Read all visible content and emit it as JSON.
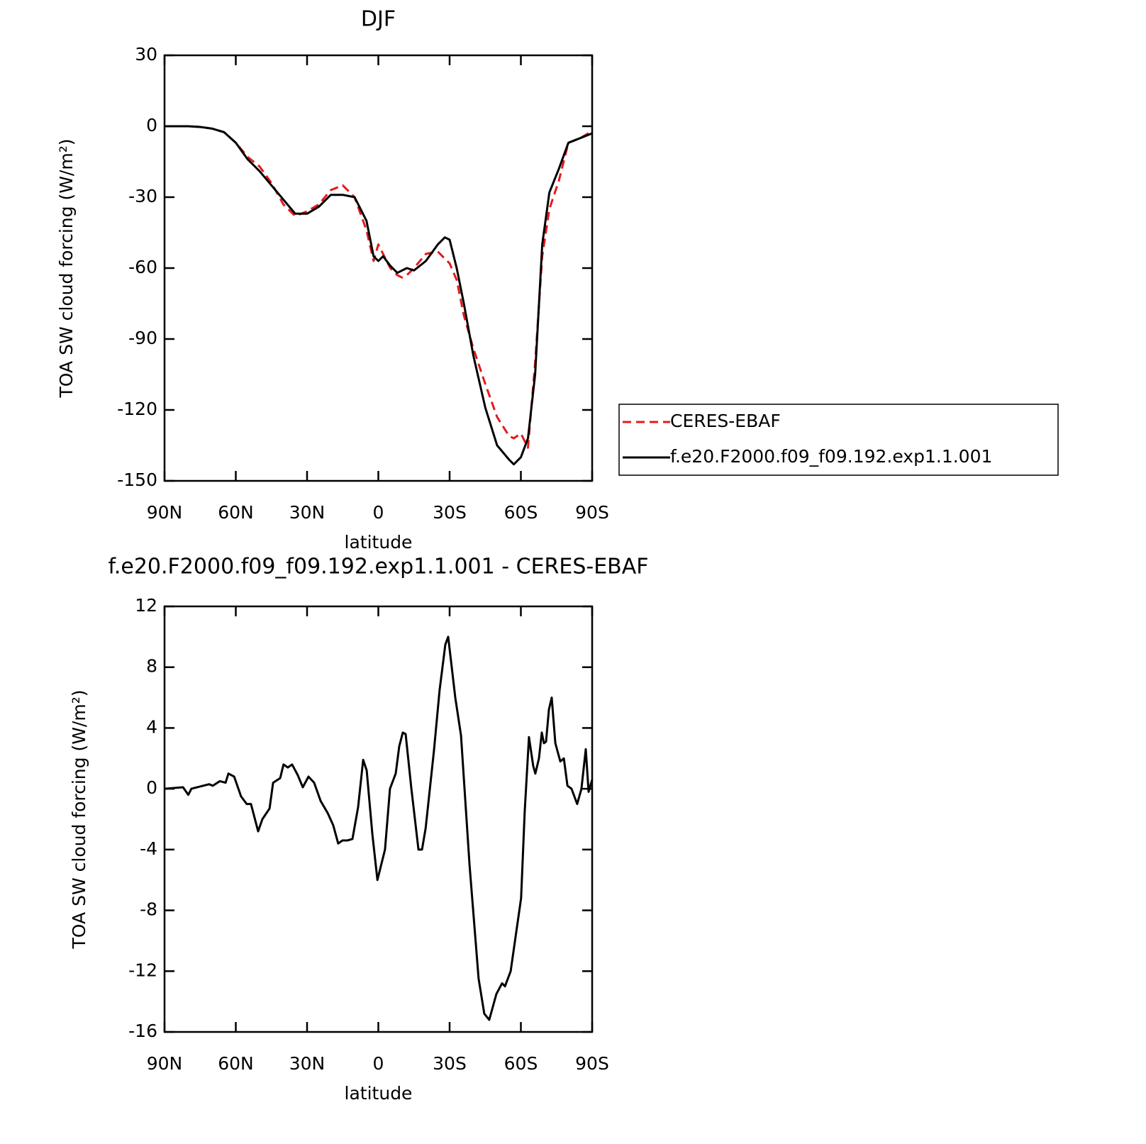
{
  "chart_data": [
    {
      "type": "line",
      "title": "DJF",
      "xlabel": "latitude",
      "ylabel": "TOA SW cloud forcing (W/m²)",
      "x": [
        90,
        85,
        80,
        75,
        70,
        65,
        60,
        55,
        50,
        45,
        40,
        35,
        30,
        25,
        20,
        15,
        10,
        5,
        2,
        0,
        -2,
        -5,
        -8,
        -10,
        -12,
        -15,
        -20,
        -25,
        -28,
        -30,
        -33,
        -36,
        -40,
        -45,
        -50,
        -55,
        -57,
        -60,
        -63,
        -66,
        -69,
        -72,
        -76,
        -80,
        -85,
        -90
      ],
      "series": [
        {
          "name": "CERES-EBAF",
          "color": "#e41a1c",
          "dashed": true,
          "values": [
            0,
            0,
            0,
            -0.3,
            -1,
            -2.5,
            -7,
            -13,
            -17,
            -24,
            -33,
            -38,
            -36,
            -33,
            -27,
            -25,
            -30,
            -44,
            -57,
            -50,
            -54,
            -60,
            -63,
            -64,
            -63,
            -60,
            -54,
            -53,
            -56,
            -58,
            -65,
            -80,
            -94,
            -109,
            -123,
            -131,
            -132,
            -130,
            -136,
            -100,
            -55,
            -35,
            -23,
            -7,
            -5,
            -2
          ]
        },
        {
          "name": "f.e20.F2000.f09_f09.192.exp1.1.001",
          "color": "#000000",
          "dashed": false,
          "values": [
            0,
            0,
            0,
            -0.3,
            -1,
            -2.5,
            -7,
            -14,
            -19,
            -25,
            -31,
            -37,
            -37,
            -34,
            -29,
            -29,
            -30,
            -40,
            -55,
            -57,
            -55,
            -59,
            -62,
            -61,
            -60,
            -61,
            -57,
            -50,
            -47,
            -48,
            -60,
            -75,
            -97,
            -119,
            -135,
            -141,
            -143,
            -140,
            -132,
            -105,
            -50,
            -28,
            -18,
            -7,
            -5,
            -3
          ]
        }
      ],
      "xlim": [
        90,
        -90
      ],
      "xticks": [
        {
          "value": 90,
          "label": "90N"
        },
        {
          "value": 60,
          "label": "60N"
        },
        {
          "value": 30,
          "label": "30N"
        },
        0,
        {
          "value": -30,
          "label": "30S"
        },
        {
          "value": -60,
          "label": "60S"
        },
        {
          "value": -90,
          "label": "90S"
        }
      ],
      "ylim": [
        -150,
        30
      ],
      "yticks": [
        -150,
        -120,
        -90,
        -60,
        -30,
        0,
        30
      ],
      "legend": "right"
    },
    {
      "type": "line",
      "title": "f.e20.F2000.f09_f09.192.exp1.1.001 - CERES-EBAF",
      "xlabel": "latitude",
      "ylabel": "TOA SW cloud forcing (W/m²)",
      "x": [
        90,
        82.2,
        80,
        78.7,
        71.2,
        69.7,
        66.7,
        64.3,
        63.1,
        60.7,
        57.8,
        55.4,
        53.6,
        50.6,
        48.8,
        45.8,
        44.3,
        41.3,
        39.9,
        38.1,
        36.3,
        33.9,
        31.8,
        29.4,
        27,
        24.3,
        21.3,
        19,
        16.9,
        15.1,
        13,
        10.9,
        8.5,
        6.4,
        4.9,
        2.5,
        0.4,
        -2.8,
        -4.9,
        -7.3,
        -8.8,
        -10.3,
        -11.5,
        -13.9,
        -16.9,
        -18.4,
        -19.9,
        -23.4,
        -25.8,
        -28.2,
        -29.4,
        -32.4,
        -34.8,
        -38.4,
        -42.2,
        -44.6,
        -46.7,
        -49.7,
        -52.1,
        -53.3,
        -55.7,
        -60.1,
        -61.6,
        -63.4,
        -65.2,
        -66.1,
        -67.6,
        -68.8,
        -69.7,
        -70.6,
        -71.8,
        -73,
        -74.5,
        -76.6,
        -78.1,
        -79.6,
        -81.3,
        -83.7,
        -85.5,
        -87.3,
        -88.5,
        -90
      ],
      "series": [
        {
          "color": "#000000",
          "dashed": false,
          "values": [
            0,
            0.1,
            -0.4,
            0,
            0.3,
            0.2,
            0.5,
            0.4,
            1.0,
            0.8,
            -0.5,
            -1.0,
            -1.0,
            -2.8,
            -2.0,
            -1.3,
            0.4,
            0.7,
            1.6,
            1.4,
            1.6,
            0.9,
            0.1,
            0.8,
            0.4,
            -0.8,
            -1.6,
            -2.4,
            -3.6,
            -3.4,
            -3.4,
            -3.3,
            -1.2,
            1.9,
            1.2,
            -3.0,
            -6.0,
            -4.0,
            0,
            1.0,
            2.8,
            3.7,
            3.6,
            0,
            -4.0,
            -4.0,
            -2.6,
            2.5,
            6.5,
            9.5,
            10.0,
            6.0,
            3.5,
            -5.0,
            -12.5,
            -14.8,
            -15.2,
            -13.5,
            -12.8,
            -13.0,
            -12.0,
            -7.2,
            -1.5,
            3.4,
            1.5,
            1.0,
            2.0,
            3.7,
            3.0,
            3.1,
            5.2,
            6.0,
            3.0,
            1.8,
            2.0,
            0.2,
            0,
            -1.0,
            0,
            2.6,
            -0.2,
            0.6
          ]
        }
      ],
      "xlim": [
        90,
        -90
      ],
      "xticks": [
        {
          "value": 90,
          "label": "90N"
        },
        {
          "value": 60,
          "label": "60N"
        },
        {
          "value": 30,
          "label": "30N"
        },
        0,
        {
          "value": -30,
          "label": "30S"
        },
        {
          "value": -60,
          "label": "60S"
        },
        {
          "value": -90,
          "label": "90S"
        }
      ],
      "ylim": [
        -16,
        12
      ],
      "yticks": [
        -16,
        -12,
        -8,
        -4,
        0,
        4,
        8,
        12
      ]
    }
  ]
}
